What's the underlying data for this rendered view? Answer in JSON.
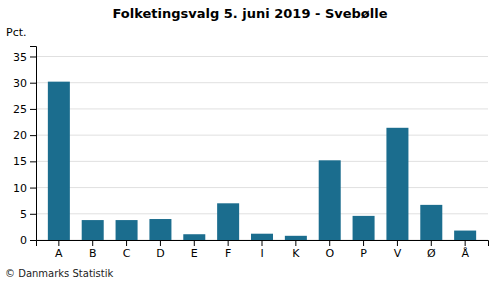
{
  "chart_data": {
    "type": "bar",
    "title": "Folketingsvalg 5. juni 2019 - Svebølle",
    "y_label": "Pct.",
    "categories": [
      "A",
      "B",
      "C",
      "D",
      "E",
      "F",
      "I",
      "K",
      "O",
      "P",
      "V",
      "Ø",
      "Å"
    ],
    "values": [
      30.2,
      3.8,
      3.8,
      4.0,
      1.1,
      7.0,
      1.2,
      0.8,
      15.2,
      4.6,
      21.4,
      6.7,
      1.8
    ],
    "color": "#1b6d8e",
    "ylim": [
      0,
      37
    ],
    "yticks": [
      0,
      5,
      10,
      15,
      20,
      25,
      30,
      35
    ],
    "grid": true,
    "annotations": [
      "© Danmarks Statistik"
    ]
  }
}
